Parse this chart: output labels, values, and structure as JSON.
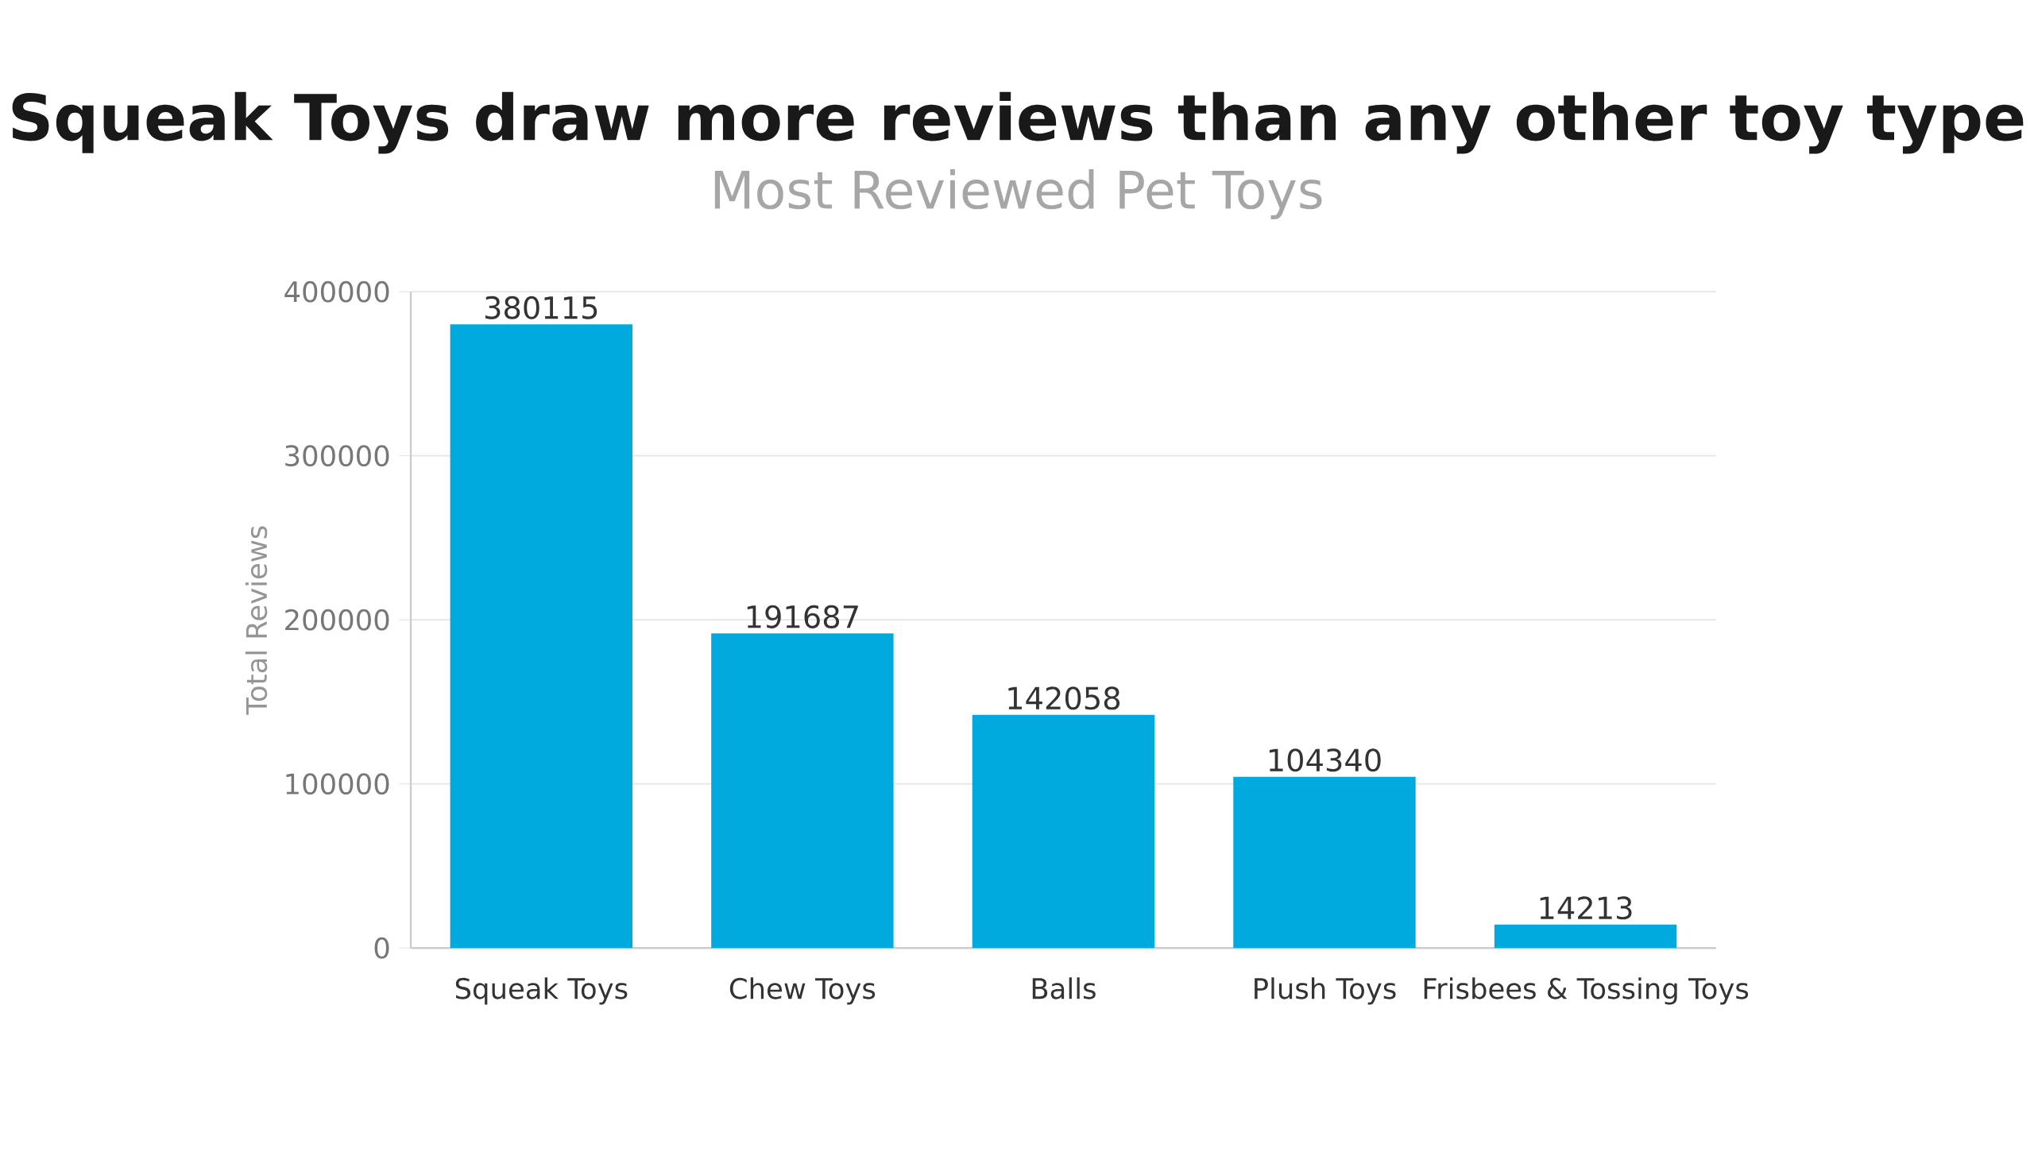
{
  "chart_data": {
    "type": "bar",
    "title": "Squeak Toys draw more reviews than any other toy type",
    "subtitle": "Most Reviewed Pet Toys",
    "ylabel": "Total Reviews",
    "categories": [
      "Squeak Toys",
      "Chew Toys",
      "Balls",
      "Plush Toys",
      "Frisbees & Tossing Toys"
    ],
    "values": [
      380115,
      191687,
      142058,
      104340,
      14213
    ],
    "color": "#00aadf",
    "ylim": [
      0,
      400000
    ],
    "yticks": [
      0,
      100000,
      200000,
      300000,
      400000
    ],
    "grid": "y",
    "data_labels": true
  }
}
